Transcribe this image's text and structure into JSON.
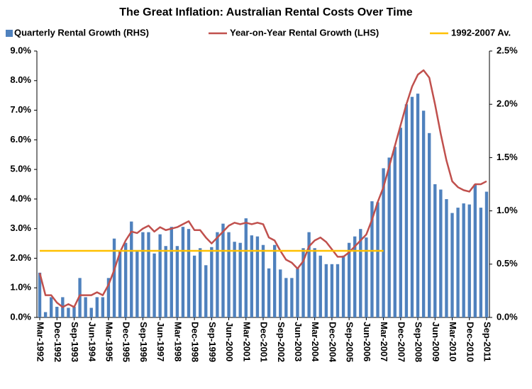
{
  "chart_data": {
    "type": "combo",
    "title": "The Great Inflation:  Australian Rental Costs Over Time",
    "categories": [
      "Mar-1992",
      null,
      null,
      "Dec-1992",
      null,
      null,
      "Sep-1993",
      null,
      null,
      "Jun-1994",
      null,
      null,
      "Mar-1995",
      null,
      null,
      "Dec-1995",
      null,
      null,
      "Sep-1996",
      null,
      null,
      "Jun-1997",
      null,
      null,
      "Mar-1998",
      null,
      null,
      "Dec-1998",
      null,
      null,
      "Sep-1999",
      null,
      null,
      "Jun-2000",
      null,
      null,
      "Mar-2001",
      null,
      null,
      "Dec-2001",
      null,
      null,
      "Sep-2002",
      null,
      null,
      "Jun-2003",
      null,
      null,
      "Mar-2004",
      null,
      null,
      "Dec-2004",
      null,
      null,
      "Sep-2005",
      null,
      null,
      "Jun-2006",
      null,
      null,
      "Mar-2007",
      null,
      null,
      "Dec-2007",
      null,
      null,
      "Sep-2008",
      null,
      null,
      "Jun-2009",
      null,
      null,
      "Mar-2010",
      null,
      null,
      "Dec-2010",
      null,
      null,
      "Sep-2011"
    ],
    "series": [
      {
        "name": "Quarterly Rental Growth (RHS)",
        "type": "bar",
        "axis": "y2",
        "color": "#4f81bd",
        "values": [
          0.42,
          0.05,
          0.19,
          0.1,
          0.19,
          0.09,
          0.1,
          0.37,
          0.19,
          0.09,
          0.19,
          0.19,
          0.37,
          0.74,
          0.62,
          0.7,
          0.9,
          0.62,
          0.8,
          0.8,
          0.6,
          0.78,
          0.67,
          0.85,
          0.67,
          0.85,
          0.83,
          0.58,
          0.65,
          0.49,
          0.66,
          0.8,
          0.88,
          0.8,
          0.71,
          0.7,
          0.93,
          0.77,
          0.76,
          0.68,
          0.46,
          0.68,
          0.45,
          0.37,
          0.37,
          0.46,
          0.65,
          0.8,
          0.65,
          0.58,
          0.5,
          0.5,
          0.5,
          0.58,
          0.7,
          0.76,
          0.83,
          0.75,
          1.09,
          1.08,
          1.4,
          1.5,
          1.6,
          1.78,
          2.0,
          2.07,
          2.1,
          1.94,
          1.73,
          1.25,
          1.2,
          1.11,
          0.98,
          1.03,
          1.07,
          1.06,
          1.25,
          1.03,
          1.18
        ]
      },
      {
        "name": "Year-on-Year Rental Growth (LHS)",
        "type": "line",
        "axis": "y",
        "color": "#c0504d",
        "values": [
          1.5,
          0.75,
          0.75,
          0.5,
          0.35,
          0.45,
          0.35,
          0.75,
          0.75,
          0.75,
          0.85,
          0.75,
          1.1,
          1.6,
          2.2,
          2.6,
          2.9,
          2.85,
          3.0,
          3.1,
          2.9,
          3.05,
          2.95,
          3.0,
          3.05,
          3.15,
          3.25,
          2.95,
          2.95,
          2.7,
          2.5,
          2.7,
          2.9,
          3.1,
          3.2,
          3.15,
          3.2,
          3.15,
          3.2,
          3.15,
          2.7,
          2.6,
          2.25,
          1.95,
          1.85,
          1.65,
          1.9,
          2.4,
          2.6,
          2.7,
          2.55,
          2.3,
          2.05,
          2.05,
          2.2,
          2.4,
          2.6,
          2.8,
          3.3,
          3.9,
          4.4,
          5.1,
          5.8,
          6.5,
          7.2,
          7.8,
          8.2,
          8.35,
          8.1,
          7.2,
          6.2,
          5.3,
          4.6,
          4.4,
          4.3,
          4.25,
          4.5,
          4.5,
          4.6
        ]
      },
      {
        "name": "1992-2007 Av.",
        "type": "line",
        "axis": "y",
        "color": "#ffc000",
        "values": [
          2.25,
          2.25,
          2.25,
          2.25,
          2.25,
          2.25,
          2.25,
          2.25,
          2.25,
          2.25,
          2.25,
          2.25,
          2.25,
          2.25,
          2.25,
          2.25,
          2.25,
          2.25,
          2.25,
          2.25,
          2.25,
          2.25,
          2.25,
          2.25,
          2.25,
          2.25,
          2.25,
          2.25,
          2.25,
          2.25,
          2.25,
          2.25,
          2.25,
          2.25,
          2.25,
          2.25,
          2.25,
          2.25,
          2.25,
          2.25,
          2.25,
          2.25,
          2.25,
          2.25,
          2.25,
          2.25,
          2.25,
          2.25,
          2.25,
          2.25,
          2.25,
          2.25,
          2.25,
          2.25,
          2.25,
          2.25,
          2.25,
          2.25,
          2.25,
          2.25,
          2.25,
          null,
          null,
          null,
          null,
          null,
          null,
          null,
          null,
          null,
          null,
          null,
          null,
          null,
          null,
          null,
          null,
          null,
          null
        ]
      }
    ],
    "ylim": [
      0,
      9
    ],
    "yticks": [
      {
        "value": 0,
        "label": "0.0%"
      },
      {
        "value": 1,
        "label": "1.0%"
      },
      {
        "value": 2,
        "label": "2.0%"
      },
      {
        "value": 3,
        "label": "3.0%"
      },
      {
        "value": 4,
        "label": "4.0%"
      },
      {
        "value": 5,
        "label": "5.0%"
      },
      {
        "value": 6,
        "label": "6.0%"
      },
      {
        "value": 7,
        "label": "7.0%"
      },
      {
        "value": 8,
        "label": "8.0%"
      },
      {
        "value": 9,
        "label": "9.0%"
      }
    ],
    "y2lim": [
      0,
      2.5
    ],
    "y2ticks": [
      {
        "value": 0,
        "label": "0.0%"
      },
      {
        "value": 0.5,
        "label": "0.5%"
      },
      {
        "value": 1,
        "label": "1.0%"
      },
      {
        "value": 1.5,
        "label": "1.5%"
      },
      {
        "value": 2,
        "label": "2.0%"
      },
      {
        "value": 2.5,
        "label": "2.5%"
      }
    ],
    "grid": false,
    "legend": "top"
  }
}
